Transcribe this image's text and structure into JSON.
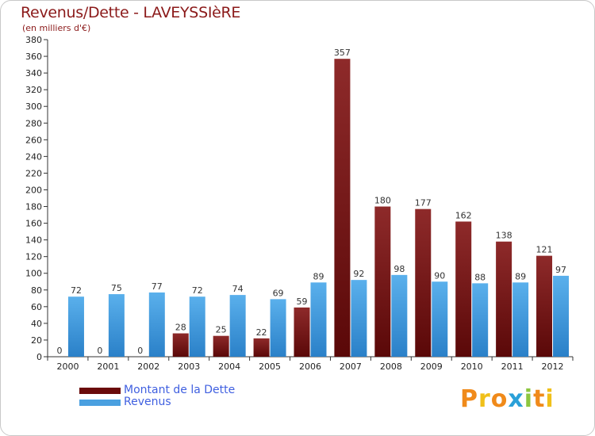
{
  "title": "Revenus/Dette - LAVEYSSIèRE",
  "subtitle": "(en milliers d'€)",
  "logo": "Proxiti",
  "colors": {
    "dette": "#7a1a1a",
    "revenus": "#4aa0e0",
    "title": "#8b1a1a",
    "legend_text": "#4060e0"
  },
  "chart_data": {
    "type": "bar",
    "categories": [
      "2000",
      "2001",
      "2002",
      "2003",
      "2004",
      "2005",
      "2006",
      "2007",
      "2008",
      "2009",
      "2010",
      "2011",
      "2012"
    ],
    "series": [
      {
        "name": "Montant de la Dette",
        "values": [
          0,
          0,
          0,
          28,
          25,
          22,
          59,
          357,
          180,
          177,
          162,
          138,
          121
        ]
      },
      {
        "name": "Revenus",
        "values": [
          72,
          75,
          77,
          72,
          74,
          69,
          89,
          92,
          98,
          90,
          88,
          89,
          97
        ]
      }
    ],
    "ylim": [
      0,
      380
    ],
    "yticks": [
      0,
      20,
      40,
      60,
      80,
      100,
      120,
      140,
      160,
      180,
      200,
      220,
      240,
      260,
      280,
      300,
      320,
      340,
      360,
      380
    ],
    "grid": false,
    "legend": "bottom-left"
  }
}
